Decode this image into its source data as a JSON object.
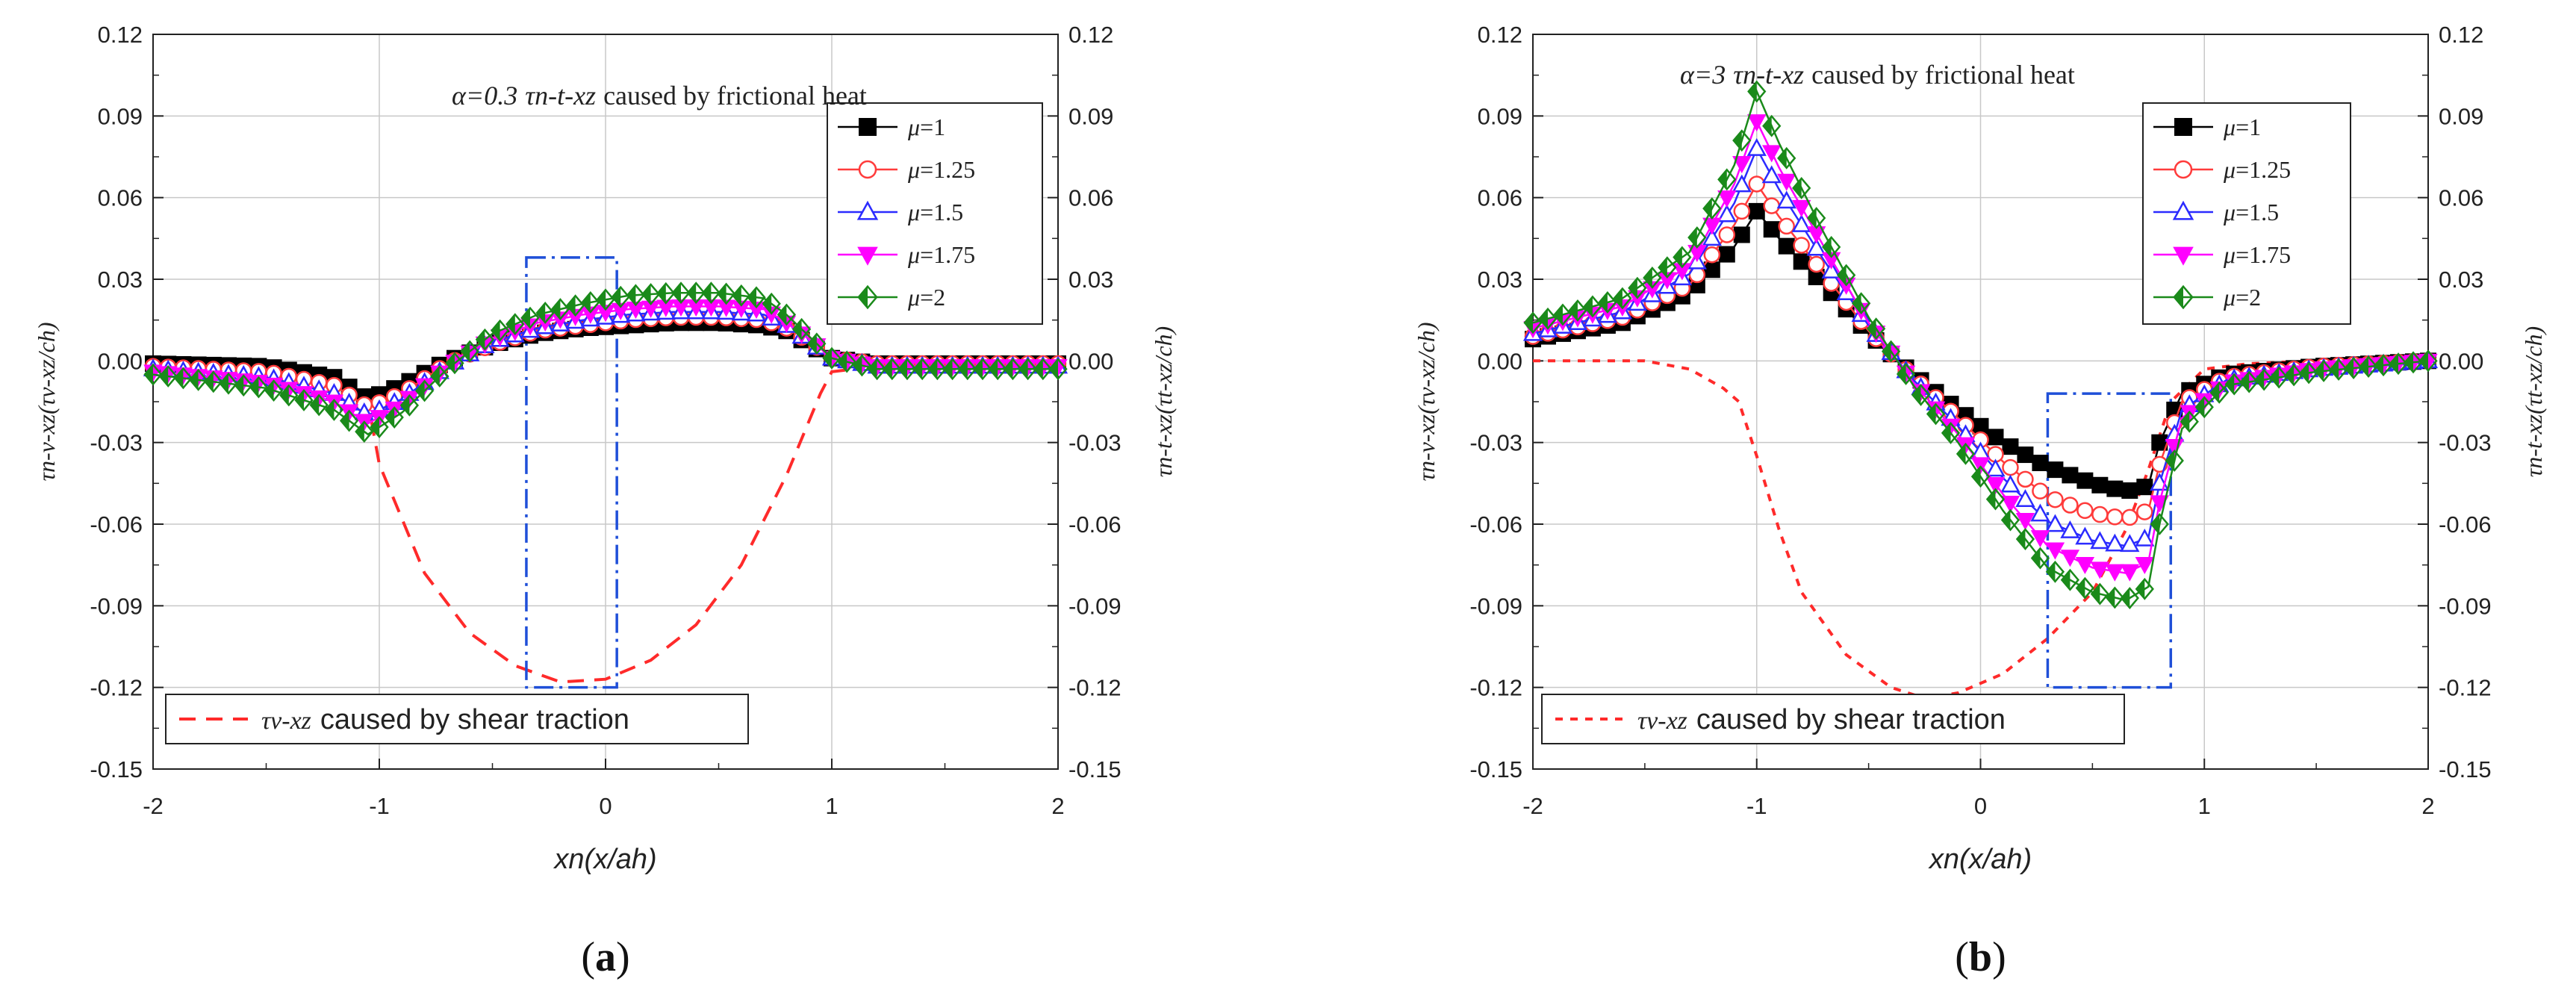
{
  "chart_data": [
    {
      "panel_label": "a",
      "type": "line",
      "title": "α=0.3 τn-t-xz caused by frictional heat",
      "alpha_label": "α=0.3",
      "title_tau": "τn-t-xz",
      "title_suffix": "caused by frictional heat",
      "xlabel_main": "xn(x/ah)",
      "ylabel_left": "τn-v-xz(τv-xz/ch)",
      "ylabel_right": "τn-t-xz(τt-xz/ch)",
      "xlim": [
        -2,
        2
      ],
      "ylim": [
        -0.15,
        0.12
      ],
      "xticks": [
        "-2",
        "-1",
        "0",
        "1",
        "2"
      ],
      "yticks": [
        "0.12",
        "0.09",
        "0.06",
        "0.03",
        "0.00",
        "-0.03",
        "-0.06",
        "-0.09",
        "-0.12",
        "-0.15"
      ],
      "x": [
        -2.0,
        -1.5,
        -1.2,
        -1.05,
        -0.9,
        -0.7,
        -0.5,
        -0.3,
        -0.1,
        0.1,
        0.3,
        0.5,
        0.7,
        0.8,
        0.9,
        1.0,
        1.2,
        1.5,
        2.0
      ],
      "series": [
        {
          "name": "μ=1",
          "mu": "1",
          "color": "#000000",
          "marker": "square",
          "values": [
            -0.001,
            -0.002,
            -0.006,
            -0.014,
            -0.009,
            0.0,
            0.006,
            0.01,
            0.012,
            0.013,
            0.014,
            0.014,
            0.013,
            0.011,
            0.006,
            0.001,
            -0.001,
            -0.001,
            -0.001
          ]
        },
        {
          "name": "μ=1.25",
          "mu": "1.25",
          "color": "#ff3b3b",
          "marker": "circle",
          "values": [
            -0.002,
            -0.004,
            -0.009,
            -0.017,
            -0.012,
            -0.001,
            0.006,
            0.011,
            0.013,
            0.015,
            0.016,
            0.016,
            0.015,
            0.012,
            0.007,
            0.001,
            -0.001,
            -0.001,
            -0.001
          ]
        },
        {
          "name": "μ=1.5",
          "mu": "1.5",
          "color": "#2b2bff",
          "marker": "triangle-up",
          "values": [
            -0.003,
            -0.006,
            -0.012,
            -0.02,
            -0.014,
            -0.002,
            0.007,
            0.012,
            0.015,
            0.017,
            0.018,
            0.018,
            0.017,
            0.013,
            0.007,
            0.001,
            -0.002,
            -0.002,
            -0.002
          ]
        },
        {
          "name": "μ=1.75",
          "mu": "1.75",
          "color": "#ff00ff",
          "marker": "triangle-down",
          "values": [
            -0.004,
            -0.008,
            -0.015,
            -0.023,
            -0.016,
            -0.002,
            0.008,
            0.014,
            0.017,
            0.019,
            0.02,
            0.02,
            0.019,
            0.014,
            0.008,
            0.001,
            -0.002,
            -0.002,
            -0.002
          ]
        },
        {
          "name": "μ=2",
          "mu": "2",
          "color": "#1a8a1a",
          "marker": "diamond",
          "values": [
            -0.005,
            -0.01,
            -0.018,
            -0.027,
            -0.019,
            -0.003,
            0.01,
            0.017,
            0.021,
            0.024,
            0.025,
            0.025,
            0.023,
            0.017,
            0.009,
            0.001,
            -0.003,
            -0.003,
            -0.003
          ]
        }
      ],
      "shear": {
        "label_tau": "τv-xz",
        "label_text": "caused by shear traction",
        "color": "#ff2a2a",
        "x": [
          -2.0,
          -1.5,
          -1.2,
          -1.05,
          -1.0,
          -0.8,
          -0.6,
          -0.4,
          -0.2,
          0.0,
          0.2,
          0.4,
          0.6,
          0.8,
          0.95,
          1.0,
          1.2,
          1.5,
          2.0
        ],
        "values": [
          -0.001,
          -0.002,
          -0.006,
          -0.015,
          -0.038,
          -0.078,
          -0.1,
          -0.112,
          -0.118,
          -0.117,
          -0.11,
          -0.097,
          -0.075,
          -0.042,
          -0.012,
          -0.004,
          -0.002,
          -0.001,
          -0.001
        ]
      },
      "box": {
        "x0": -0.35,
        "x1": 0.05,
        "y0": -0.12,
        "y1": 0.038
      }
    },
    {
      "panel_label": "b",
      "type": "line",
      "title": "α=3 τn-t-xz caused by frictional heat",
      "alpha_label": "α=3",
      "title_tau": "τn-t-xz",
      "title_suffix": "caused by frictional heat",
      "xlabel_main": "xn(x/ah)",
      "ylabel_left": "τn-v-xz(τv-xz/ch)",
      "ylabel_right": "τn-t-xz(τt-xz/ch)",
      "xlim": [
        -2,
        2
      ],
      "ylim": [
        -0.15,
        0.12
      ],
      "xticks": [
        "-2",
        "-1",
        "0",
        "1",
        "2"
      ],
      "yticks": [
        "0.12",
        "0.09",
        "0.06",
        "0.03",
        "0.00",
        "-0.03",
        "-0.06",
        "-0.09",
        "-0.12",
        "-0.15"
      ],
      "x": [
        -2.0,
        -1.6,
        -1.3,
        -1.1,
        -1.0,
        -0.9,
        -0.7,
        -0.5,
        -0.3,
        -0.1,
        0.1,
        0.3,
        0.5,
        0.65,
        0.75,
        0.8,
        0.9,
        1.1,
        1.5,
        2.0
      ],
      "series": [
        {
          "name": "μ=1",
          "mu": "1",
          "color": "#000000",
          "marker": "square",
          "values": [
            0.008,
            0.014,
            0.025,
            0.042,
            0.055,
            0.045,
            0.028,
            0.01,
            -0.005,
            -0.018,
            -0.03,
            -0.039,
            -0.045,
            -0.048,
            -0.046,
            -0.03,
            -0.012,
            -0.005,
            -0.002,
            0.0
          ]
        },
        {
          "name": "μ=1.25",
          "mu": "1.25",
          "color": "#ff3b3b",
          "marker": "circle",
          "values": [
            0.009,
            0.016,
            0.028,
            0.05,
            0.065,
            0.053,
            0.032,
            0.011,
            -0.006,
            -0.021,
            -0.037,
            -0.05,
            -0.056,
            -0.058,
            -0.055,
            -0.038,
            -0.015,
            -0.006,
            -0.002,
            0.0
          ]
        },
        {
          "name": "μ=1.5",
          "mu": "1.5",
          "color": "#2b2bff",
          "marker": "triangle-up",
          "values": [
            0.01,
            0.018,
            0.032,
            0.058,
            0.078,
            0.063,
            0.037,
            0.013,
            -0.007,
            -0.024,
            -0.043,
            -0.059,
            -0.066,
            -0.068,
            -0.065,
            -0.045,
            -0.018,
            -0.007,
            -0.003,
            0.0
          ]
        },
        {
          "name": "μ=1.75",
          "mu": "1.75",
          "color": "#ff00ff",
          "marker": "triangle-down",
          "values": [
            0.012,
            0.02,
            0.035,
            0.065,
            0.088,
            0.071,
            0.042,
            0.014,
            -0.008,
            -0.027,
            -0.049,
            -0.068,
            -0.076,
            -0.078,
            -0.074,
            -0.052,
            -0.021,
            -0.008,
            -0.003,
            0.0
          ]
        },
        {
          "name": "μ=2",
          "mu": "2",
          "color": "#1a8a1a",
          "marker": "diamond",
          "values": [
            0.014,
            0.023,
            0.04,
            0.072,
            0.099,
            0.08,
            0.047,
            0.016,
            -0.009,
            -0.03,
            -0.055,
            -0.076,
            -0.085,
            -0.088,
            -0.083,
            -0.06,
            -0.025,
            -0.009,
            -0.004,
            0.0
          ]
        }
      ],
      "shear": {
        "label_tau": "τv-xz",
        "label_text": "caused by shear traction",
        "color": "#ff2a2a",
        "x": [
          -2.0,
          -1.5,
          -1.3,
          -1.15,
          -1.08,
          -1.0,
          -0.9,
          -0.8,
          -0.6,
          -0.4,
          -0.25,
          -0.1,
          0.1,
          0.3,
          0.5,
          0.65,
          0.75,
          0.85,
          1.0,
          1.2,
          1.5,
          2.0
        ],
        "values": [
          0.0,
          0.0,
          -0.003,
          -0.01,
          -0.015,
          -0.035,
          -0.062,
          -0.085,
          -0.108,
          -0.12,
          -0.124,
          -0.122,
          -0.115,
          -0.102,
          -0.085,
          -0.062,
          -0.04,
          -0.015,
          -0.003,
          -0.001,
          0.0,
          0.0
        ]
      },
      "box": {
        "x0": 0.3,
        "x1": 0.85,
        "y0": -0.12,
        "y1": -0.012
      }
    }
  ]
}
